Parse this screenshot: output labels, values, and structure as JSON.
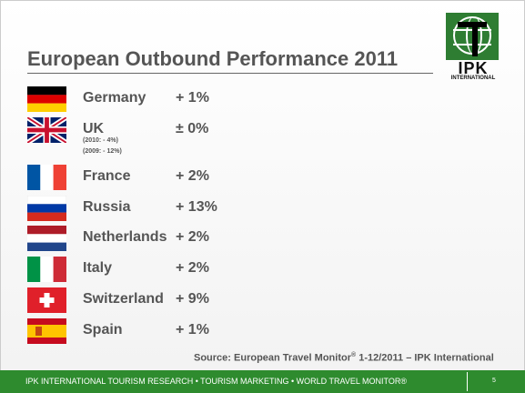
{
  "slide": {
    "title": "European Outbound Performance 2011",
    "logo": {
      "name": "IPK",
      "subtitle": "INTERNATIONAL"
    },
    "rows": [
      {
        "country": "Germany",
        "value": "+ 1%",
        "flag": "germany-flag"
      },
      {
        "country": "UK",
        "value": "± 0%",
        "flag": "uk-flag",
        "notes": [
          "(2010: - 4%)",
          "(2009: - 12%)"
        ]
      },
      {
        "country": "France",
        "value": "+ 2%",
        "flag": "france-flag"
      },
      {
        "country": "Russia",
        "value": "+ 13%",
        "flag": "russia-flag"
      },
      {
        "country": "Netherlands",
        "value": "+ 2%",
        "flag": "netherlands-flag"
      },
      {
        "country": "Italy",
        "value": "+ 2%",
        "flag": "italy-flag"
      },
      {
        "country": "Switzerland",
        "value": "+ 9%",
        "flag": "switzerland-flag"
      },
      {
        "country": "Spain",
        "value": "+ 1%",
        "flag": "spain-flag"
      }
    ],
    "source": {
      "prefix": "Source: European Travel Monitor",
      "mark": "®",
      "suffix": " 1-12/2011 – IPK International"
    },
    "footer": {
      "text": "IPK INTERNATIONAL  TOURISM RESEARCH • TOURISM MARKETING •  WORLD TRAVEL MONITOR®",
      "page": "5"
    },
    "colors": {
      "footer": "#2e8b2e",
      "logo": "#2e7d32",
      "text": "#555555"
    }
  }
}
